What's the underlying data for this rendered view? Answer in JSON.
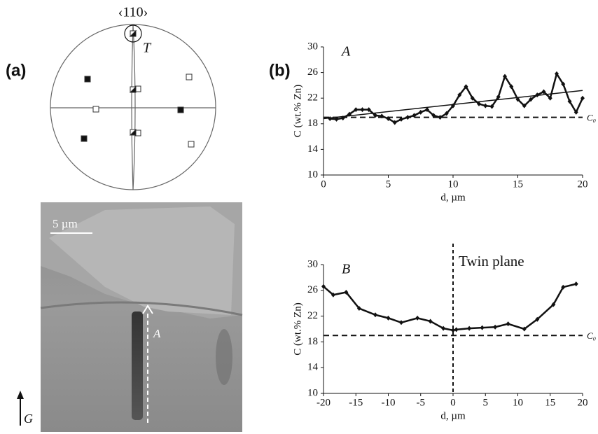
{
  "panel_a": {
    "label": "(a)",
    "pole": "‹110›",
    "pole_label": "T",
    "scale_bar": "5 µm",
    "arrow_label": "A",
    "growth_label": "G"
  },
  "panel_b": {
    "label": "(b)"
  },
  "chart_data": [
    {
      "type": "line",
      "panel_label": "A",
      "ylabel": "C (wt.% Zn)",
      "xlabel": "d, µm",
      "color": "#111111",
      "x": [
        0.5,
        1,
        1.5,
        2,
        2.5,
        3,
        3.5,
        4,
        4.5,
        5,
        5.5,
        6,
        6.5,
        7,
        7.5,
        8,
        8.5,
        9,
        9.5,
        10,
        10.5,
        11,
        11.5,
        12,
        12.5,
        13,
        13.5,
        14,
        14.5,
        15,
        15.5,
        16,
        16.5,
        17,
        17.5,
        18,
        18.5,
        19,
        19.5,
        20
      ],
      "values": [
        18.8,
        18.7,
        18.9,
        19.5,
        20.2,
        20.2,
        20.2,
        19.3,
        19.2,
        18.8,
        18.2,
        18.7,
        19.0,
        19.3,
        19.8,
        20.2,
        19.3,
        19.0,
        19.6,
        20.8,
        22.5,
        23.8,
        22.0,
        21.1,
        20.8,
        20.7,
        22.2,
        25.4,
        23.8,
        21.8,
        20.8,
        21.8,
        22.5,
        23.0,
        22.0,
        25.8,
        24.2,
        21.5,
        19.8,
        22.0
      ],
      "trend_line": {
        "x": [
          0,
          20
        ],
        "values": [
          18.8,
          23.2
        ]
      },
      "reference_line": {
        "value": 19,
        "label": "C₀"
      },
      "xlim": [
        0,
        20
      ],
      "xticks": [
        0,
        5,
        10,
        15,
        20
      ],
      "ylim": [
        10,
        30
      ],
      "yticks": [
        10,
        14,
        18,
        22,
        26,
        30
      ]
    },
    {
      "type": "line",
      "panel_label": "B",
      "ylabel": "C (wt.% Zn)",
      "xlabel": "d, µm",
      "color": "#111111",
      "x": [
        -20,
        -18.5,
        -16.5,
        -14.5,
        -12,
        -10,
        -8,
        -5.5,
        -3.5,
        -1.5,
        0,
        0.5,
        2.5,
        4.5,
        6.5,
        8.5,
        11,
        13,
        15.5,
        17,
        19
      ],
      "values": [
        26.6,
        25.3,
        25.7,
        23.2,
        22.2,
        21.7,
        21.0,
        21.7,
        21.2,
        20.1,
        19.8,
        19.9,
        20.1,
        20.2,
        20.3,
        20.8,
        20.0,
        21.5,
        23.8,
        26.5,
        27.0
      ],
      "reference_line": {
        "value": 19,
        "label": "C₀"
      },
      "vline": {
        "value": 0,
        "label": "Twin plane"
      },
      "xlim": [
        -20,
        20
      ],
      "xticks": [
        -20,
        -15,
        -10,
        -5,
        0,
        5,
        10,
        15,
        20
      ],
      "ylim": [
        10,
        30
      ],
      "yticks": [
        10,
        14,
        18,
        22,
        26,
        30
      ]
    }
  ]
}
